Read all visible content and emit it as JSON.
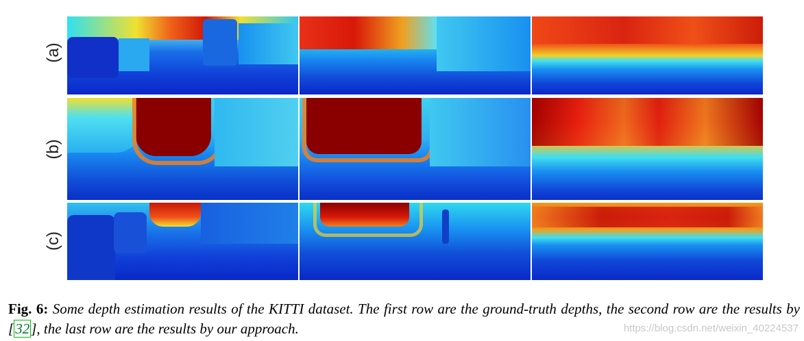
{
  "figure": {
    "row_labels": [
      "(a)",
      "(b)",
      "(c)"
    ],
    "rows": [
      {
        "id": "a",
        "description": "ground-truth depths"
      },
      {
        "id": "b",
        "description": "results by [32]"
      },
      {
        "id": "c",
        "description": "results by our approach"
      }
    ],
    "colormap": {
      "near": "#0a1ec8",
      "mid_near": "#1e8cf0",
      "mid": "#28dcf0",
      "mid_far": "#f0e628",
      "far": "#f03214",
      "farthest": "#8c0000"
    }
  },
  "caption": {
    "label": "Fig. 6:",
    "text_before_citation": " Some depth estimation results of the KITTI dataset. The first row are the ground-truth depths, the second row are the results by ",
    "citation_open": "[",
    "citation": "32",
    "citation_close": "]",
    "text_after_citation": ", the last row are the results by our approach."
  },
  "watermark": {
    "text": "https://blog.csdn.net/weixin_40224537"
  }
}
